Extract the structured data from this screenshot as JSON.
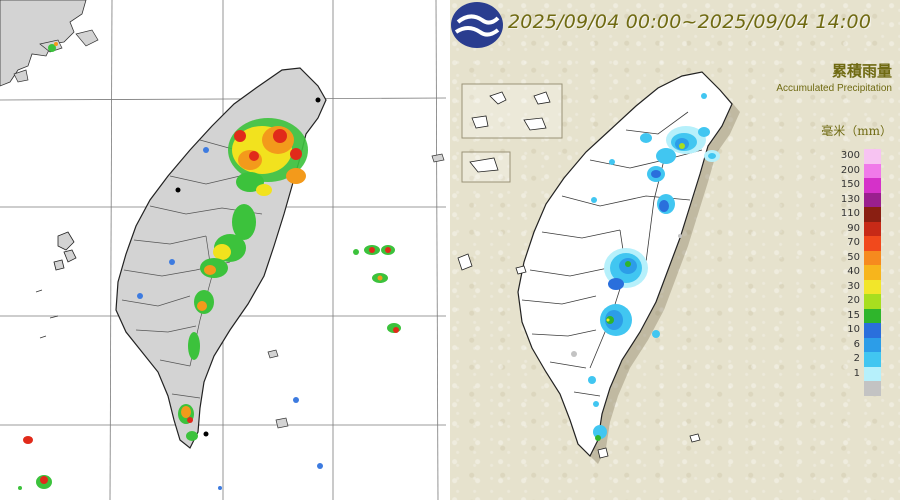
{
  "radar_map": {
    "colors": {
      "land": "#d3d3d3",
      "sea": "#ffffff",
      "grid": "#7a7a7a",
      "echo_green": "#3cc23c",
      "echo_yellow": "#f2e21e",
      "echo_orange": "#f39a1b",
      "echo_red": "#e12a1a",
      "echo_blue": "#3d7be0"
    }
  },
  "rain_map": {
    "period_title": "2025/09/04 00:00~2025/09/04 14:00",
    "product_title_zh": "累積雨量",
    "product_title_en": "Accumulated Precipitation",
    "unit_label": "毫米（mm）",
    "legend": [
      {
        "label": "300",
        "color": "#f7c3f2"
      },
      {
        "label": "200",
        "color": "#f07ae9"
      },
      {
        "label": "150",
        "color": "#d531c9"
      },
      {
        "label": "130",
        "color": "#9a1f8e"
      },
      {
        "label": "110",
        "color": "#8a1f12"
      },
      {
        "label": "90",
        "color": "#c72a17"
      },
      {
        "label": "70",
        "color": "#f1491c"
      },
      {
        "label": "50",
        "color": "#f68a1e"
      },
      {
        "label": "40",
        "color": "#f7b51c"
      },
      {
        "label": "30",
        "color": "#f2e62a"
      },
      {
        "label": "20",
        "color": "#a8de1f"
      },
      {
        "label": "15",
        "color": "#2fb52c"
      },
      {
        "label": "10",
        "color": "#2a6fdc"
      },
      {
        "label": "6",
        "color": "#2c9de8"
      },
      {
        "label": "2",
        "color": "#41c6f1"
      },
      {
        "label": "1",
        "color": "#b6f0fb"
      },
      {
        "label": "",
        "color": "#c3c3c3"
      }
    ],
    "colors": {
      "land": "#ffffff",
      "county_line": "#3a3a3a",
      "title": "#6f6a12"
    },
    "logo_icon": "cwa-logo-icon"
  }
}
